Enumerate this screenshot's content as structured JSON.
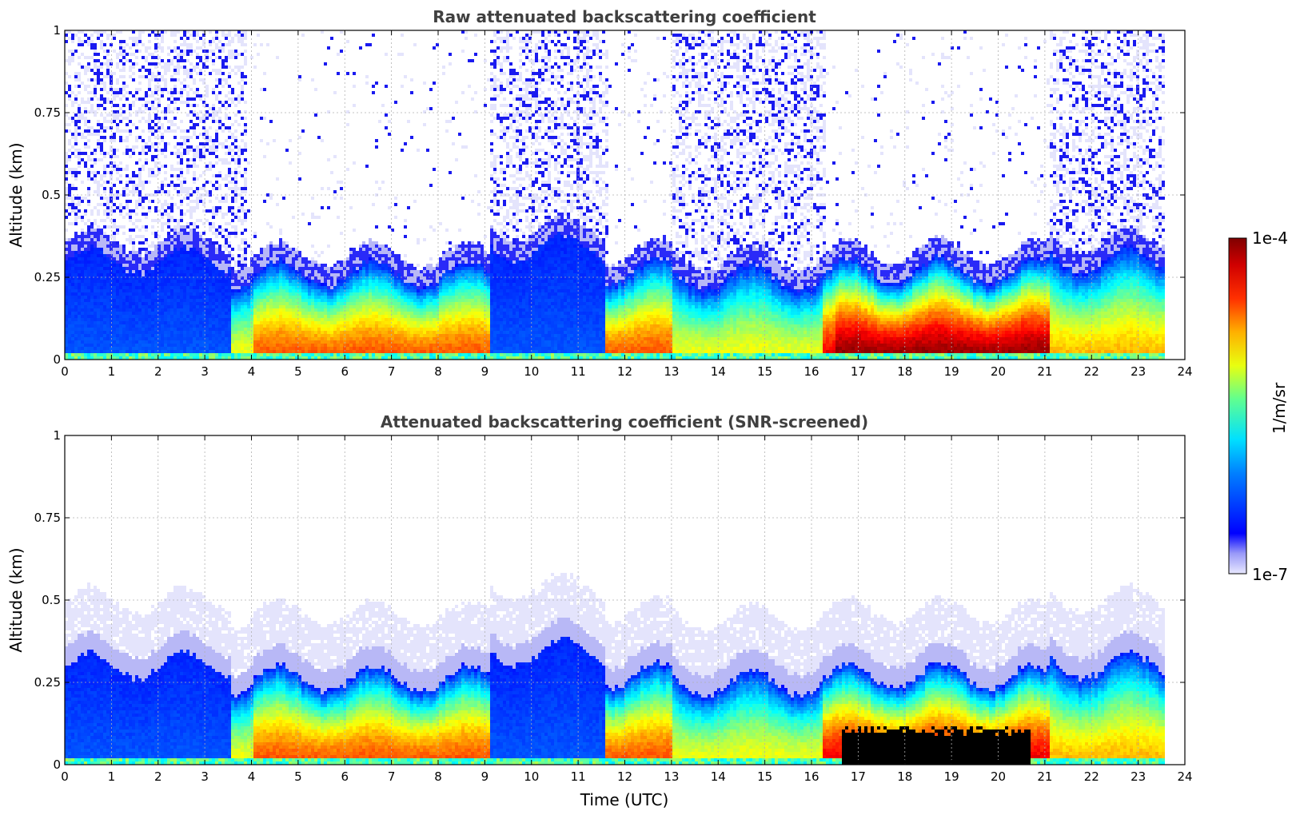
{
  "chart_data": [
    {
      "type": "heatmap",
      "title": "Raw attenuated backscattering coefficient",
      "xlabel": "",
      "ylabel": "Altitude (km)",
      "xlim": [
        0,
        24
      ],
      "ylim": [
        0,
        1
      ],
      "x_ticks": [
        "0",
        "1",
        "2",
        "3",
        "4",
        "5",
        "6",
        "7",
        "8",
        "9",
        "10",
        "11",
        "12",
        "13",
        "14",
        "15",
        "16",
        "17",
        "18",
        "19",
        "20",
        "21",
        "22",
        "23",
        "24"
      ],
      "y_ticks": [
        "0",
        "0.25",
        "0.5",
        "0.75",
        "1"
      ],
      "grid": true,
      "data_end_hour": 23.55,
      "screened": false,
      "segments": [
        {
          "start": 0.0,
          "end": 3.5,
          "regime": "blue",
          "top_km": 0.3
        },
        {
          "start": 3.5,
          "end": 4.0,
          "regime": "green",
          "top_km": 0.25
        },
        {
          "start": 4.0,
          "end": 9.1,
          "regime": "orange",
          "top_km": 0.26
        },
        {
          "start": 9.1,
          "end": 10.9,
          "regime": "blue",
          "top_km": 0.34
        },
        {
          "start": 10.9,
          "end": 11.55,
          "regime": "blue",
          "top_km": 0.34
        },
        {
          "start": 11.55,
          "end": 13.0,
          "regime": "orange",
          "top_km": 0.27
        },
        {
          "start": 13.0,
          "end": 16.2,
          "regime": "green",
          "top_km": 0.25
        },
        {
          "start": 16.2,
          "end": 16.5,
          "regime": "red",
          "top_km": 0.26
        },
        {
          "start": 16.5,
          "end": 21.1,
          "regime": "dark",
          "top_km": 0.27
        },
        {
          "start": 21.1,
          "end": 23.55,
          "regime": "yellow",
          "top_km": 0.3
        }
      ]
    },
    {
      "type": "heatmap",
      "title": "Attenuated backscattering coefficient (SNR-screened)",
      "xlabel": "Time (UTC)",
      "ylabel": "Altitude (km)",
      "xlim": [
        0,
        24
      ],
      "ylim": [
        0,
        1
      ],
      "x_ticks": [
        "0",
        "1",
        "2",
        "3",
        "4",
        "5",
        "6",
        "7",
        "8",
        "9",
        "10",
        "11",
        "12",
        "13",
        "14",
        "15",
        "16",
        "17",
        "18",
        "19",
        "20",
        "21",
        "22",
        "23",
        "24"
      ],
      "y_ticks": [
        "0",
        "0.25",
        "0.5",
        "0.75",
        "1"
      ],
      "grid": true,
      "data_end_hour": 23.55,
      "screened": true,
      "segments": [
        {
          "start": 0.0,
          "end": 3.5,
          "regime": "blue",
          "top_km": 0.3
        },
        {
          "start": 3.5,
          "end": 4.0,
          "regime": "green",
          "top_km": 0.25
        },
        {
          "start": 4.0,
          "end": 9.1,
          "regime": "orange",
          "top_km": 0.26
        },
        {
          "start": 9.1,
          "end": 10.9,
          "regime": "blue",
          "top_km": 0.34
        },
        {
          "start": 10.9,
          "end": 11.55,
          "regime": "blue",
          "top_km": 0.34
        },
        {
          "start": 11.55,
          "end": 13.0,
          "regime": "orange",
          "top_km": 0.27
        },
        {
          "start": 13.0,
          "end": 16.2,
          "regime": "green",
          "top_km": 0.25
        },
        {
          "start": 16.2,
          "end": 16.6,
          "regime": "red",
          "top_km": 0.26
        },
        {
          "start": 16.6,
          "end": 20.65,
          "regime": "black",
          "top_km": 0.27,
          "black_top_km": 0.12
        },
        {
          "start": 20.65,
          "end": 21.1,
          "regime": "red",
          "top_km": 0.26
        },
        {
          "start": 21.1,
          "end": 23.55,
          "regime": "yellow",
          "top_km": 0.3
        }
      ]
    }
  ],
  "colorbar": {
    "label": "1/m/sr",
    "max_label": "1e-4",
    "min_label": "1e-7",
    "scale": "log",
    "range": [
      1e-07,
      0.0001
    ]
  },
  "colors": {
    "jet_dark_red": "#800000",
    "jet_blue": "#0000ff",
    "pale": "#e4e4fc",
    "title_gray": "#404040",
    "screened_black": "#000000"
  }
}
